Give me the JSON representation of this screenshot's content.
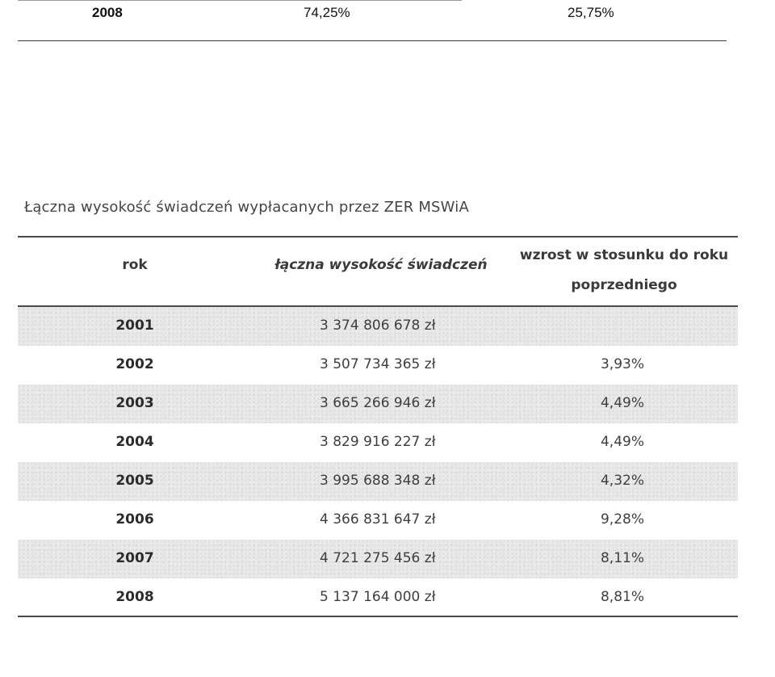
{
  "previous_table": {
    "row": {
      "year": "2008",
      "value_a": "74,25%",
      "value_b": "25,75%"
    }
  },
  "caption": "Łączna wysokość świadczeń wypłacanych przez ZER MSWiA",
  "table": {
    "headers": {
      "year": "rok",
      "total": "łączna wysokość świadczeń",
      "growth_line1": "wzrost w stosunku do roku",
      "growth_line2": "poprzedniego"
    },
    "rows": [
      {
        "year": "2001",
        "total": "3 374 806 678 zł",
        "growth": ""
      },
      {
        "year": "2002",
        "total": "3 507 734 365 zł",
        "growth": "3,93%"
      },
      {
        "year": "2003",
        "total": "3 665 266 946 zł",
        "growth": "4,49%"
      },
      {
        "year": "2004",
        "total": "3 829 916 227 zł",
        "growth": "4,49%"
      },
      {
        "year": "2005",
        "total": "3 995 688 348 zł",
        "growth": "4,32%"
      },
      {
        "year": "2006",
        "total": "4 366 831 647 zł",
        "growth": "9,28%"
      },
      {
        "year": "2007",
        "total": "4 721 275 456 zł",
        "growth": "8,11%"
      },
      {
        "year": "2008",
        "total": "5 137 164 000 zł",
        "growth": "8,81%"
      }
    ]
  }
}
